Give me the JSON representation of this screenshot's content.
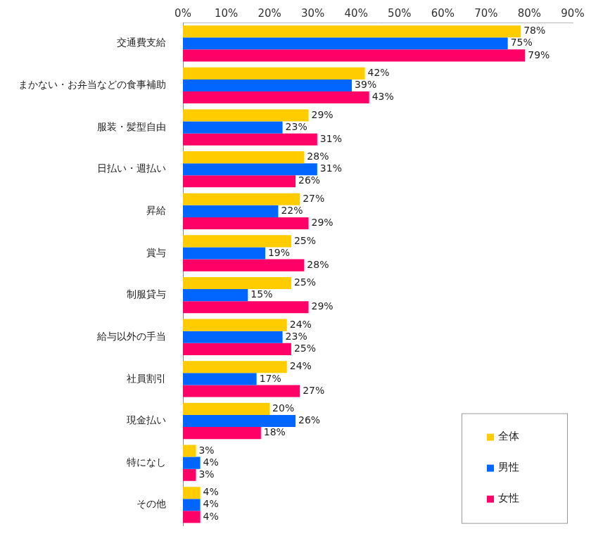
{
  "chart_data": {
    "type": "bar",
    "orientation": "horizontal",
    "categories": [
      "交通費支給",
      "まかない・お弁当などの食事補助",
      "服装・髪型自由",
      "日払い・週払い",
      "昇給",
      "賞与",
      "制服貸与",
      "給与以外の手当",
      "社員割引",
      "現金払い",
      "特になし",
      "その他"
    ],
    "series": [
      {
        "name": "全体",
        "color": "#FFCC00",
        "values": [
          78,
          42,
          29,
          28,
          27,
          25,
          25,
          24,
          24,
          20,
          3,
          4
        ],
        "value_labels": [
          "78%",
          "42%",
          "29%",
          "28%",
          "27%",
          "25%",
          "25%",
          "24%",
          "24%",
          "20%",
          "3%",
          "4%"
        ]
      },
      {
        "name": "男性",
        "color": "#0066FF",
        "values": [
          75,
          39,
          23,
          31,
          22,
          19,
          15,
          23,
          17,
          26,
          4,
          4
        ],
        "value_labels": [
          "75%",
          "39%",
          "23%",
          "31%",
          "22%",
          "19%",
          "15%",
          "23%",
          "17%",
          "26%",
          "4%",
          "4%"
        ]
      },
      {
        "name": "女性",
        "color": "#FF0066",
        "values": [
          79,
          43,
          31,
          26,
          29,
          28,
          29,
          25,
          27,
          18,
          3,
          4
        ],
        "value_labels": [
          "79%",
          "43%",
          "31%",
          "26%",
          "29%",
          "28%",
          "29%",
          "25%",
          "27%",
          "18%",
          "3%",
          "4%"
        ]
      }
    ],
    "xlim": [
      0,
      90
    ],
    "xticks": [
      {
        "value": 0,
        "label": "0%"
      },
      {
        "value": 10,
        "label": "10%"
      },
      {
        "value": 20,
        "label": "20%"
      },
      {
        "value": 30,
        "label": "30%"
      },
      {
        "value": 40,
        "label": "40%"
      },
      {
        "value": 50,
        "label": "50%"
      },
      {
        "value": 60,
        "label": "60%"
      },
      {
        "value": 70,
        "label": "70%"
      },
      {
        "value": 80,
        "label": "80%"
      },
      {
        "value": 90,
        "label": "90%"
      }
    ],
    "grid": false,
    "legend": "lower right",
    "data_labels": true
  }
}
